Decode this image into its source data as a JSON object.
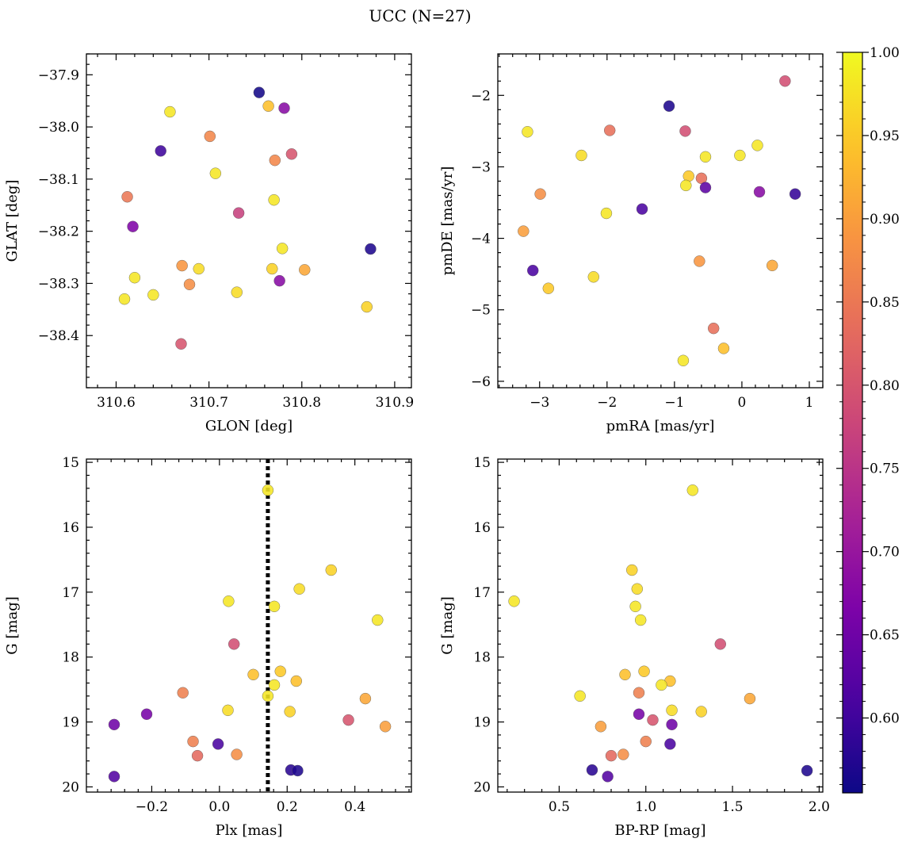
{
  "figure": {
    "title": "UCC (N=27)",
    "colormap": "plasma",
    "colorbar": {
      "ticks": [
        0.6,
        0.65,
        0.7,
        0.75,
        0.8,
        0.85,
        0.9,
        0.95,
        1.0
      ],
      "range": [
        0.555,
        1.0
      ]
    }
  },
  "chart_data": [
    {
      "type": "scatter",
      "id": "glon-glat",
      "xlabel": "GLON [deg]",
      "ylabel": "GLAT [deg]",
      "xlim": [
        310.568,
        310.918
      ],
      "ylim": [
        -38.5,
        -37.86
      ],
      "y_inverted": false,
      "xticks": [
        310.6,
        310.7,
        310.8,
        310.9
      ],
      "xtick_labels": [
        "310.6",
        "310.7",
        "310.8",
        "310.9"
      ],
      "yticks": [
        -38.4,
        -38.3,
        -38.2,
        -38.1,
        -38.0,
        -37.9
      ],
      "ytick_labels": [
        "−38.4",
        "−38.3",
        "−38.2",
        "−38.1",
        "−38.0",
        "−37.9"
      ],
      "points": [
        {
          "x": 310.754,
          "y": -37.934,
          "c": 0.56
        },
        {
          "x": 310.764,
          "y": -37.96,
          "c": 0.94
        },
        {
          "x": 310.781,
          "y": -37.964,
          "c": 0.68
        },
        {
          "x": 310.658,
          "y": -37.971,
          "c": 0.98
        },
        {
          "x": 310.701,
          "y": -38.018,
          "c": 0.87
        },
        {
          "x": 310.648,
          "y": -38.046,
          "c": 0.6
        },
        {
          "x": 310.789,
          "y": -38.052,
          "c": 0.8
        },
        {
          "x": 310.771,
          "y": -38.064,
          "c": 0.87
        },
        {
          "x": 310.707,
          "y": -38.089,
          "c": 0.98
        },
        {
          "x": 310.612,
          "y": -38.134,
          "c": 0.85
        },
        {
          "x": 310.77,
          "y": -38.14,
          "c": 0.98
        },
        {
          "x": 310.732,
          "y": -38.165,
          "c": 0.77
        },
        {
          "x": 310.618,
          "y": -38.191,
          "c": 0.67
        },
        {
          "x": 310.779,
          "y": -38.233,
          "c": 0.98
        },
        {
          "x": 310.874,
          "y": -38.234,
          "c": 0.57
        },
        {
          "x": 310.671,
          "y": -38.266,
          "c": 0.89
        },
        {
          "x": 310.689,
          "y": -38.272,
          "c": 0.97
        },
        {
          "x": 310.768,
          "y": -38.272,
          "c": 0.96
        },
        {
          "x": 310.803,
          "y": -38.274,
          "c": 0.91
        },
        {
          "x": 310.62,
          "y": -38.289,
          "c": 0.98
        },
        {
          "x": 310.776,
          "y": -38.295,
          "c": 0.68
        },
        {
          "x": 310.679,
          "y": -38.302,
          "c": 0.88
        },
        {
          "x": 310.73,
          "y": -38.317,
          "c": 0.97
        },
        {
          "x": 310.64,
          "y": -38.322,
          "c": 0.98
        },
        {
          "x": 310.609,
          "y": -38.33,
          "c": 0.98
        },
        {
          "x": 310.87,
          "y": -38.345,
          "c": 0.96
        },
        {
          "x": 310.67,
          "y": -38.416,
          "c": 0.8
        }
      ]
    },
    {
      "type": "scatter",
      "id": "pmra-pmde",
      "xlabel": "pmRA [mas/yr]",
      "ylabel": "pmDE [mas/yr]",
      "xlim": [
        -3.62,
        1.2
      ],
      "ylim": [
        -6.09,
        -1.42
      ],
      "y_inverted": false,
      "xticks": [
        -3,
        -2,
        -1,
        0,
        1
      ],
      "xtick_labels": [
        "−3",
        "−2",
        "−1",
        "0",
        "1"
      ],
      "yticks": [
        -6,
        -5,
        -4,
        -3,
        -2
      ],
      "ytick_labels": [
        "−6",
        "−5",
        "−4",
        "−3",
        "−2"
      ],
      "points": [
        {
          "x": 0.64,
          "y": -1.8,
          "c": 0.79
        },
        {
          "x": -1.08,
          "y": -2.15,
          "c": 0.57
        },
        {
          "x": -1.96,
          "y": -2.49,
          "c": 0.84
        },
        {
          "x": -0.84,
          "y": -2.5,
          "c": 0.79
        },
        {
          "x": -3.18,
          "y": -2.51,
          "c": 0.98
        },
        {
          "x": 0.23,
          "y": -2.7,
          "c": 0.98
        },
        {
          "x": -2.38,
          "y": -2.84,
          "c": 0.97
        },
        {
          "x": -0.03,
          "y": -2.84,
          "c": 0.98
        },
        {
          "x": -0.54,
          "y": -2.86,
          "c": 0.98
        },
        {
          "x": -0.79,
          "y": -3.13,
          "c": 0.95
        },
        {
          "x": -0.6,
          "y": -3.16,
          "c": 0.84
        },
        {
          "x": -0.83,
          "y": -3.26,
          "c": 0.98
        },
        {
          "x": -0.54,
          "y": -3.29,
          "c": 0.63
        },
        {
          "x": 0.26,
          "y": -3.35,
          "c": 0.68
        },
        {
          "x": -2.99,
          "y": -3.38,
          "c": 0.88
        },
        {
          "x": 0.79,
          "y": -3.38,
          "c": 0.59
        },
        {
          "x": -1.48,
          "y": -3.59,
          "c": 0.61
        },
        {
          "x": -2.01,
          "y": -3.65,
          "c": 0.98
        },
        {
          "x": -3.24,
          "y": -3.9,
          "c": 0.9
        },
        {
          "x": -0.63,
          "y": -4.32,
          "c": 0.89
        },
        {
          "x": 0.45,
          "y": -4.38,
          "c": 0.91
        },
        {
          "x": -3.1,
          "y": -4.45,
          "c": 0.61
        },
        {
          "x": -2.2,
          "y": -4.54,
          "c": 0.97
        },
        {
          "x": -2.87,
          "y": -4.7,
          "c": 0.95
        },
        {
          "x": -0.42,
          "y": -5.26,
          "c": 0.84
        },
        {
          "x": -0.27,
          "y": -5.54,
          "c": 0.94
        },
        {
          "x": -0.87,
          "y": -5.71,
          "c": 0.98
        }
      ]
    },
    {
      "type": "scatter",
      "id": "plx-g",
      "xlabel": "Plx [mas]",
      "ylabel": "G [mag]",
      "xlim": [
        -0.393,
        0.567
      ],
      "ylim": [
        20.08,
        14.95
      ],
      "y_inverted": true,
      "vline": 0.143,
      "xticks": [
        -0.2,
        0.0,
        0.2,
        0.4
      ],
      "xtick_labels": [
        "−0.2",
        "0.0",
        "0.2",
        "0.4"
      ],
      "yticks": [
        15,
        16,
        17,
        18,
        19,
        20
      ],
      "ytick_labels": [
        "15",
        "16",
        "17",
        "18",
        "19",
        "20"
      ],
      "points": [
        {
          "x": 0.143,
          "y": 15.43,
          "c": 0.98
        },
        {
          "x": 0.33,
          "y": 16.66,
          "c": 0.96
        },
        {
          "x": 0.236,
          "y": 16.95,
          "c": 0.97
        },
        {
          "x": 0.027,
          "y": 17.14,
          "c": 0.98
        },
        {
          "x": 0.162,
          "y": 17.22,
          "c": 0.98
        },
        {
          "x": 0.467,
          "y": 17.43,
          "c": 0.98
        },
        {
          "x": 0.043,
          "y": 17.8,
          "c": 0.79
        },
        {
          "x": 0.18,
          "y": 18.22,
          "c": 0.95
        },
        {
          "x": 0.1,
          "y": 18.27,
          "c": 0.94
        },
        {
          "x": 0.227,
          "y": 18.37,
          "c": 0.94
        },
        {
          "x": 0.162,
          "y": 18.43,
          "c": 0.98
        },
        {
          "x": -0.108,
          "y": 18.55,
          "c": 0.86
        },
        {
          "x": 0.143,
          "y": 18.6,
          "c": 0.98
        },
        {
          "x": 0.431,
          "y": 18.64,
          "c": 0.91
        },
        {
          "x": 0.025,
          "y": 18.82,
          "c": 0.97
        },
        {
          "x": 0.208,
          "y": 18.84,
          "c": 0.96
        },
        {
          "x": -0.215,
          "y": 18.88,
          "c": 0.66
        },
        {
          "x": 0.381,
          "y": 18.97,
          "c": 0.8
        },
        {
          "x": -0.311,
          "y": 19.04,
          "c": 0.65
        },
        {
          "x": 0.49,
          "y": 19.07,
          "c": 0.9
        },
        {
          "x": -0.078,
          "y": 19.3,
          "c": 0.86
        },
        {
          "x": -0.004,
          "y": 19.34,
          "c": 0.61
        },
        {
          "x": -0.065,
          "y": 19.52,
          "c": 0.83
        },
        {
          "x": 0.051,
          "y": 19.5,
          "c": 0.88
        },
        {
          "x": 0.211,
          "y": 19.74,
          "c": 0.58
        },
        {
          "x": 0.231,
          "y": 19.75,
          "c": 0.57
        },
        {
          "x": -0.311,
          "y": 19.84,
          "c": 0.62
        }
      ]
    },
    {
      "type": "scatter",
      "id": "bprp-g",
      "xlabel": "BP-RP [mag]",
      "ylabel": "G [mag]",
      "xlim": [
        0.146,
        2.021
      ],
      "ylim": [
        20.08,
        14.95
      ],
      "y_inverted": true,
      "xticks": [
        0.5,
        1.0,
        1.5,
        2.0
      ],
      "xtick_labels": [
        "0.5",
        "1.0",
        "1.5",
        "2.0"
      ],
      "yticks": [
        15,
        16,
        17,
        18,
        19,
        20
      ],
      "ytick_labels": [
        "15",
        "16",
        "17",
        "18",
        "19",
        "20"
      ],
      "points": [
        {
          "x": 1.27,
          "y": 15.43,
          "c": 0.98
        },
        {
          "x": 0.92,
          "y": 16.66,
          "c": 0.96
        },
        {
          "x": 0.95,
          "y": 16.95,
          "c": 0.97
        },
        {
          "x": 0.24,
          "y": 17.14,
          "c": 0.98
        },
        {
          "x": 0.94,
          "y": 17.22,
          "c": 0.98
        },
        {
          "x": 0.97,
          "y": 17.43,
          "c": 0.98
        },
        {
          "x": 1.43,
          "y": 17.8,
          "c": 0.79
        },
        {
          "x": 0.99,
          "y": 18.22,
          "c": 0.95
        },
        {
          "x": 0.88,
          "y": 18.27,
          "c": 0.94
        },
        {
          "x": 1.14,
          "y": 18.37,
          "c": 0.94
        },
        {
          "x": 1.09,
          "y": 18.43,
          "c": 0.98
        },
        {
          "x": 0.96,
          "y": 18.55,
          "c": 0.86
        },
        {
          "x": 0.62,
          "y": 18.6,
          "c": 0.98
        },
        {
          "x": 1.6,
          "y": 18.64,
          "c": 0.91
        },
        {
          "x": 1.15,
          "y": 18.82,
          "c": 0.97
        },
        {
          "x": 1.32,
          "y": 18.84,
          "c": 0.96
        },
        {
          "x": 0.96,
          "y": 18.88,
          "c": 0.66
        },
        {
          "x": 1.04,
          "y": 18.97,
          "c": 0.8
        },
        {
          "x": 1.15,
          "y": 19.04,
          "c": 0.65
        },
        {
          "x": 0.74,
          "y": 19.07,
          "c": 0.9
        },
        {
          "x": 1.0,
          "y": 19.3,
          "c": 0.86
        },
        {
          "x": 1.14,
          "y": 19.34,
          "c": 0.61
        },
        {
          "x": 0.8,
          "y": 19.52,
          "c": 0.83
        },
        {
          "x": 0.87,
          "y": 19.5,
          "c": 0.88
        },
        {
          "x": 0.69,
          "y": 19.74,
          "c": 0.58
        },
        {
          "x": 1.93,
          "y": 19.75,
          "c": 0.57
        },
        {
          "x": 0.78,
          "y": 19.84,
          "c": 0.62
        }
      ]
    }
  ]
}
